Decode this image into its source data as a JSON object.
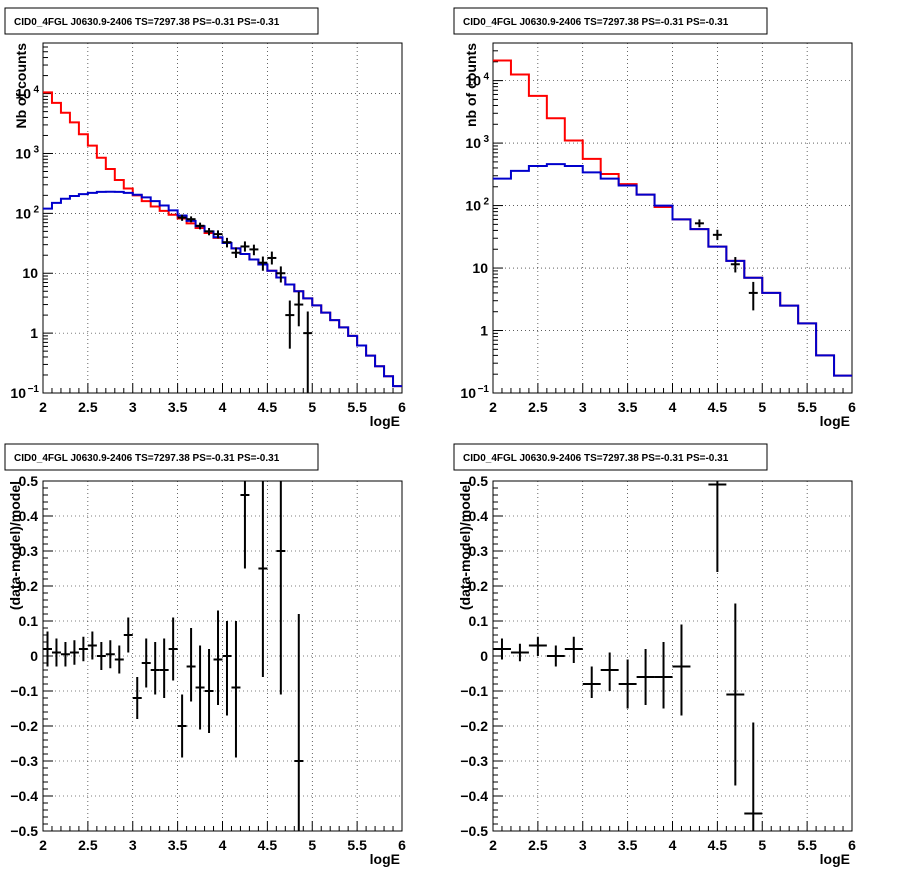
{
  "chart_data": [
    {
      "type": "line",
      "title": "CID0_4FGL J0630.9-2406 TS=7297.38 PS=-0.31 PS=-0.31",
      "xlabel": "logE",
      "ylabel": "Nb of counts",
      "xlim": [
        2,
        6
      ],
      "ylim": [
        0.1,
        70000
      ],
      "yscale": "log",
      "grid": true,
      "xticks": [
        "2",
        "2.5",
        "3",
        "3.5",
        "4",
        "4.5",
        "5",
        "5.5",
        "6"
      ],
      "yticks": [
        {
          "v": 0.1,
          "label": "10",
          "exp": "−1"
        },
        {
          "v": 1,
          "label": "1",
          "exp": ""
        },
        {
          "v": 10,
          "label": "10",
          "exp": ""
        },
        {
          "v": 100,
          "label": "10",
          "exp": "2"
        },
        {
          "v": 1000,
          "label": "10",
          "exp": "3"
        },
        {
          "v": 10000,
          "label": "10",
          "exp": "4"
        }
      ],
      "series": [
        {
          "color": "#ff0000",
          "kind": "step",
          "edges": [
            2.0,
            2.1,
            2.2,
            2.3,
            2.4,
            2.5,
            2.6,
            2.7,
            2.8,
            2.9,
            3.0,
            3.1,
            3.2,
            3.3,
            3.4,
            3.5,
            3.6,
            3.7,
            3.8,
            3.9,
            4.0,
            4.1,
            4.2,
            4.3,
            4.4,
            4.5,
            4.6,
            4.7,
            4.8,
            4.9,
            5.0,
            5.1,
            5.2,
            5.3,
            5.4,
            5.5,
            5.6,
            5.7,
            5.8,
            5.9,
            6.0
          ],
          "values": [
            10500,
            7000,
            4800,
            3300,
            2100,
            1350,
            850,
            550,
            360,
            260,
            200,
            160,
            130,
            110,
            95,
            82,
            68,
            57,
            47,
            39,
            32,
            26,
            21,
            17,
            14,
            11,
            8.5,
            6.5,
            5,
            3.8,
            2.9,
            2.2,
            1.65,
            1.25,
            0.9,
            0.62,
            0.42,
            0.28,
            0.19,
            0.13
          ]
        },
        {
          "color": "#0000cc",
          "kind": "step",
          "edges": [
            2.0,
            2.1,
            2.2,
            2.3,
            2.4,
            2.5,
            2.6,
            2.7,
            2.8,
            2.9,
            3.0,
            3.1,
            3.2,
            3.3,
            3.4,
            3.5,
            3.6,
            3.7,
            3.8,
            3.9,
            4.0,
            4.1,
            4.2,
            4.3,
            4.4,
            4.5,
            4.6,
            4.7,
            4.8,
            4.9,
            5.0,
            5.1,
            5.2,
            5.3,
            5.4,
            5.5,
            5.6,
            5.7,
            5.8,
            5.9,
            6.0
          ],
          "values": [
            120,
            150,
            175,
            195,
            210,
            220,
            228,
            230,
            228,
            220,
            205,
            185,
            160,
            135,
            112,
            92,
            75,
            61,
            50,
            40,
            32,
            26,
            21,
            17,
            14,
            11,
            8.5,
            6.5,
            5,
            3.8,
            2.9,
            2.2,
            1.65,
            1.25,
            0.9,
            0.62,
            0.42,
            0.28,
            0.19,
            0.13
          ]
        },
        {
          "color": "#000000",
          "kind": "points",
          "points": [
            {
              "x": 3.55,
              "y": 85,
              "lo": 75,
              "hi": 95
            },
            {
              "x": 3.65,
              "y": 80,
              "lo": 71,
              "hi": 89
            },
            {
              "x": 3.75,
              "y": 62,
              "lo": 54,
              "hi": 70
            },
            {
              "x": 3.85,
              "y": 50,
              "lo": 43,
              "hi": 57
            },
            {
              "x": 3.95,
              "y": 45,
              "lo": 38,
              "hi": 52
            },
            {
              "x": 4.05,
              "y": 33,
              "lo": 27,
              "hi": 39
            },
            {
              "x": 4.15,
              "y": 22,
              "lo": 18,
              "hi": 27
            },
            {
              "x": 4.25,
              "y": 28,
              "lo": 23,
              "hi": 34
            },
            {
              "x": 4.35,
              "y": 25,
              "lo": 20,
              "hi": 30
            },
            {
              "x": 4.45,
              "y": 15,
              "lo": 11,
              "hi": 19
            },
            {
              "x": 4.55,
              "y": 18,
              "lo": 14,
              "hi": 23
            },
            {
              "x": 4.65,
              "y": 10,
              "lo": 7,
              "hi": 13
            },
            {
              "x": 4.75,
              "y": 2,
              "lo": 0.55,
              "hi": 3.5
            },
            {
              "x": 4.85,
              "y": 3,
              "lo": 1.3,
              "hi": 4.9
            },
            {
              "x": 4.95,
              "y": 1,
              "lo": 0.1,
              "hi": 2.3
            }
          ]
        }
      ]
    },
    {
      "type": "line",
      "title": "CID0_4FGL J0630.9-2406 TS=7297.38 PS=-0.31 PS=-0.31",
      "xlabel": "logE",
      "ylabel": "nb of counts",
      "xlim": [
        2,
        6
      ],
      "ylim": [
        0.1,
        40000
      ],
      "yscale": "log",
      "grid": true,
      "xticks": [
        "2",
        "2.5",
        "3",
        "3.5",
        "4",
        "4.5",
        "5",
        "5.5",
        "6"
      ],
      "yticks": [
        {
          "v": 0.1,
          "label": "10",
          "exp": "−1"
        },
        {
          "v": 1,
          "label": "1",
          "exp": ""
        },
        {
          "v": 10,
          "label": "10",
          "exp": ""
        },
        {
          "v": 100,
          "label": "10",
          "exp": "2"
        },
        {
          "v": 1000,
          "label": "10",
          "exp": "3"
        },
        {
          "v": 10000,
          "label": "10",
          "exp": "4"
        }
      ],
      "series": [
        {
          "color": "#ff0000",
          "kind": "step",
          "edges": [
            2.0,
            2.2,
            2.4,
            2.6,
            2.8,
            3.0,
            3.2,
            3.4,
            3.6,
            3.8,
            4.0,
            4.2,
            4.4,
            4.6,
            4.8,
            5.0,
            5.2,
            5.4,
            5.6,
            5.8,
            6.0
          ],
          "values": [
            21000,
            12500,
            5700,
            2500,
            1100,
            560,
            320,
            220,
            150,
            95,
            60,
            42,
            22,
            13,
            7,
            4,
            2.5,
            1.3,
            0.4,
            0.19
          ]
        },
        {
          "color": "#0000cc",
          "kind": "step",
          "edges": [
            2.0,
            2.2,
            2.4,
            2.6,
            2.8,
            3.0,
            3.2,
            3.4,
            3.6,
            3.8,
            4.0,
            4.2,
            4.4,
            4.6,
            4.8,
            5.0,
            5.2,
            5.4,
            5.6,
            5.8,
            6.0
          ],
          "values": [
            270,
            360,
            430,
            460,
            430,
            340,
            270,
            210,
            150,
            100,
            60,
            42,
            22,
            13,
            7,
            4,
            2.5,
            1.3,
            0.4,
            0.19
          ]
        },
        {
          "color": "#000000",
          "kind": "points",
          "points": [
            {
              "x": 4.3,
              "y": 52,
              "lo": 45,
              "hi": 60
            },
            {
              "x": 4.5,
              "y": 34,
              "lo": 28,
              "hi": 41
            },
            {
              "x": 4.7,
              "y": 11.5,
              "lo": 8.5,
              "hi": 15
            },
            {
              "x": 4.9,
              "y": 4,
              "lo": 2.1,
              "hi": 6
            }
          ]
        }
      ]
    },
    {
      "type": "scatter",
      "title": "CID0_4FGL J0630.9-2406 TS=7297.38 PS=-0.31 PS=-0.31",
      "xlabel": "logE",
      "ylabel": "(data-model)/model",
      "xlim": [
        2,
        6
      ],
      "ylim": [
        -0.5,
        0.5
      ],
      "yscale": "linear",
      "grid": true,
      "xticks": [
        "2",
        "2.5",
        "3",
        "3.5",
        "4",
        "4.5",
        "5",
        "5.5",
        "6"
      ],
      "yticks": [
        {
          "v": -0.5,
          "label": "−0.5"
        },
        {
          "v": -0.4,
          "label": "−0.4"
        },
        {
          "v": -0.3,
          "label": "−0.3"
        },
        {
          "v": -0.2,
          "label": "−0.2"
        },
        {
          "v": -0.1,
          "label": "−0.1"
        },
        {
          "v": 0,
          "label": "0"
        },
        {
          "v": 0.1,
          "label": "0.1"
        },
        {
          "v": 0.2,
          "label": "0.2"
        },
        {
          "v": 0.3,
          "label": "0.3"
        },
        {
          "v": 0.4,
          "label": "0.4"
        },
        {
          "v": 0.5,
          "label": "0.5"
        }
      ],
      "series": [
        {
          "color": "#000000",
          "kind": "points",
          "xerr": 0.05,
          "points": [
            {
              "x": 2.05,
              "y": 0.02,
              "lo": -0.03,
              "hi": 0.07
            },
            {
              "x": 2.15,
              "y": 0.01,
              "lo": -0.03,
              "hi": 0.05
            },
            {
              "x": 2.25,
              "y": 0.005,
              "lo": -0.03,
              "hi": 0.04
            },
            {
              "x": 2.35,
              "y": 0.01,
              "lo": -0.025,
              "hi": 0.045
            },
            {
              "x": 2.45,
              "y": 0.02,
              "lo": -0.015,
              "hi": 0.055
            },
            {
              "x": 2.55,
              "y": 0.03,
              "lo": -0.01,
              "hi": 0.07
            },
            {
              "x": 2.65,
              "y": 0.0,
              "lo": -0.04,
              "hi": 0.04
            },
            {
              "x": 2.75,
              "y": 0.005,
              "lo": -0.035,
              "hi": 0.045
            },
            {
              "x": 2.85,
              "y": -0.01,
              "lo": -0.05,
              "hi": 0.03
            },
            {
              "x": 2.95,
              "y": 0.06,
              "lo": 0.01,
              "hi": 0.11
            },
            {
              "x": 3.05,
              "y": -0.12,
              "lo": -0.18,
              "hi": -0.06
            },
            {
              "x": 3.15,
              "y": -0.02,
              "lo": -0.09,
              "hi": 0.05
            },
            {
              "x": 3.25,
              "y": -0.04,
              "lo": -0.11,
              "hi": 0.04
            },
            {
              "x": 3.35,
              "y": -0.04,
              "lo": -0.12,
              "hi": 0.05
            },
            {
              "x": 3.45,
              "y": 0.02,
              "lo": -0.07,
              "hi": 0.11
            },
            {
              "x": 3.55,
              "y": -0.2,
              "lo": -0.29,
              "hi": -0.11
            },
            {
              "x": 3.65,
              "y": -0.03,
              "lo": -0.13,
              "hi": 0.08
            },
            {
              "x": 3.75,
              "y": -0.09,
              "lo": -0.21,
              "hi": 0.03
            },
            {
              "x": 3.85,
              "y": -0.1,
              "lo": -0.22,
              "hi": 0.02
            },
            {
              "x": 3.95,
              "y": -0.01,
              "lo": -0.14,
              "hi": 0.13
            },
            {
              "x": 4.05,
              "y": 0.0,
              "lo": -0.17,
              "hi": 0.1
            },
            {
              "x": 4.15,
              "y": -0.09,
              "lo": -0.29,
              "hi": 0.1
            },
            {
              "x": 4.25,
              "y": 0.46,
              "lo": 0.25,
              "hi": 0.5
            },
            {
              "x": 4.45,
              "y": 0.25,
              "lo": -0.06,
              "hi": 0.5
            },
            {
              "x": 4.65,
              "y": 0.3,
              "lo": -0.11,
              "hi": 0.5
            },
            {
              "x": 4.85,
              "y": -0.3,
              "lo": -0.5,
              "hi": 0.12
            }
          ]
        }
      ]
    },
    {
      "type": "scatter",
      "title": "CID0_4FGL J0630.9-2406 TS=7297.38 PS=-0.31 PS=-0.31",
      "xlabel": "logE",
      "ylabel": "(data-model)/model",
      "xlim": [
        2,
        6
      ],
      "ylim": [
        -0.5,
        0.5
      ],
      "yscale": "linear",
      "grid": true,
      "xticks": [
        "2",
        "2.5",
        "3",
        "3.5",
        "4",
        "4.5",
        "5",
        "5.5",
        "6"
      ],
      "yticks": [
        {
          "v": -0.5,
          "label": "−0.5"
        },
        {
          "v": -0.4,
          "label": "−0.4"
        },
        {
          "v": -0.3,
          "label": "−0.3"
        },
        {
          "v": -0.2,
          "label": "−0.2"
        },
        {
          "v": -0.1,
          "label": "−0.1"
        },
        {
          "v": 0,
          "label": "0"
        },
        {
          "v": 0.1,
          "label": "0.1"
        },
        {
          "v": 0.2,
          "label": "0.2"
        },
        {
          "v": 0.3,
          "label": "0.3"
        },
        {
          "v": 0.4,
          "label": "0.4"
        },
        {
          "v": 0.5,
          "label": "0.5"
        }
      ],
      "series": [
        {
          "color": "#000000",
          "kind": "points",
          "xerr": 0.1,
          "points": [
            {
              "x": 2.1,
              "y": 0.02,
              "lo": -0.01,
              "hi": 0.05
            },
            {
              "x": 2.3,
              "y": 0.01,
              "lo": -0.015,
              "hi": 0.035
            },
            {
              "x": 2.5,
              "y": 0.03,
              "lo": 0.0,
              "hi": 0.055
            },
            {
              "x": 2.7,
              "y": 0.0,
              "lo": -0.03,
              "hi": 0.03
            },
            {
              "x": 2.9,
              "y": 0.02,
              "lo": -0.02,
              "hi": 0.055
            },
            {
              "x": 3.1,
              "y": -0.08,
              "lo": -0.12,
              "hi": -0.03
            },
            {
              "x": 3.3,
              "y": -0.04,
              "lo": -0.1,
              "hi": 0.01
            },
            {
              "x": 3.5,
              "y": -0.08,
              "lo": -0.15,
              "hi": -0.01
            },
            {
              "x": 3.7,
              "y": -0.06,
              "lo": -0.14,
              "hi": 0.02
            },
            {
              "x": 3.9,
              "y": -0.06,
              "lo": -0.15,
              "hi": 0.04
            },
            {
              "x": 4.1,
              "y": -0.03,
              "lo": -0.17,
              "hi": 0.09
            },
            {
              "x": 4.5,
              "y": 0.49,
              "lo": 0.24,
              "hi": 0.5
            },
            {
              "x": 4.7,
              "y": -0.11,
              "lo": -0.37,
              "hi": 0.15
            },
            {
              "x": 4.9,
              "y": -0.45,
              "lo": -0.5,
              "hi": -0.19
            }
          ]
        }
      ]
    }
  ]
}
